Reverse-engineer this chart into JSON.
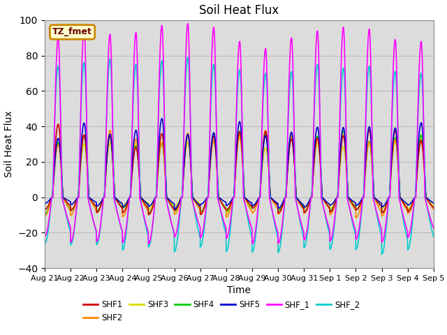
{
  "title": "Soil Heat Flux",
  "xlabel": "Time",
  "ylabel": "Soil Heat Flux",
  "ylim": [
    -40,
    100
  ],
  "yticks": [
    -40,
    -20,
    0,
    20,
    40,
    60,
    80,
    100
  ],
  "n_days": 15,
  "series": {
    "SHF1": {
      "color": "#cc0000",
      "lw": 1.2
    },
    "SHF2": {
      "color": "#ff8800",
      "lw": 1.2
    },
    "SHF3": {
      "color": "#dddd00",
      "lw": 1.2
    },
    "SHF4": {
      "color": "#00cc00",
      "lw": 1.2
    },
    "SHF5": {
      "color": "#0000cc",
      "lw": 1.2
    },
    "SHF_1": {
      "color": "#ff00ff",
      "lw": 1.2
    },
    "SHF_2": {
      "color": "#00cccc",
      "lw": 1.2
    }
  },
  "annotation_text": "TZ_fmet",
  "annotation_bbox": {
    "boxstyle": "round,pad=0.3",
    "facecolor": "#ffffcc",
    "edgecolor": "#cc8800",
    "linewidth": 2
  },
  "bg_color": "#dcdcdc",
  "plot_bg_color": "#ffffff",
  "grid_color": "#bbbbbb",
  "tick_label_fontsize": 8,
  "axis_label_fontsize": 10,
  "title_fontsize": 12
}
